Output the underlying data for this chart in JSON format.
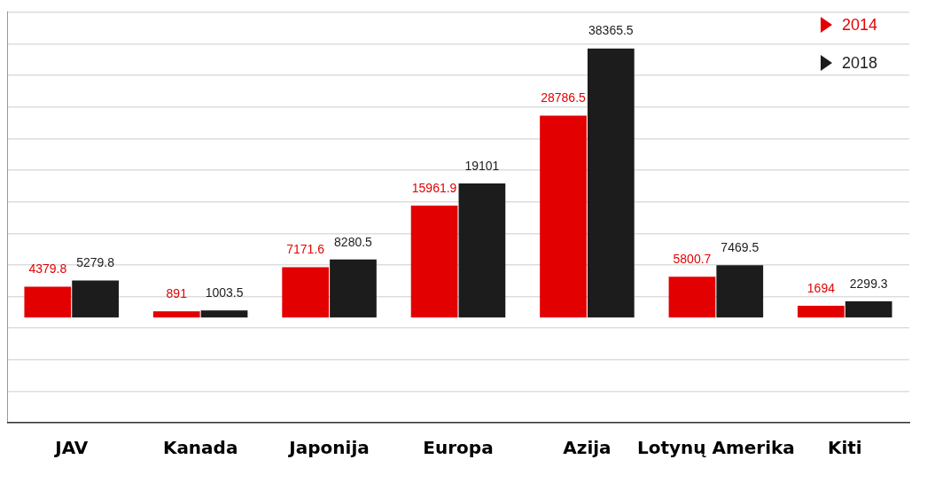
{
  "chart_data": {
    "type": "bar",
    "categories": [
      "JAV",
      "Kanada",
      "Japonija",
      "Europa",
      "Azija",
      "Lotynų Amerika",
      "Kiti"
    ],
    "series": [
      {
        "name": "2014",
        "color": "#e30000",
        "values": [
          4379.8,
          891,
          7171.6,
          15961.9,
          28786.5,
          5800.7,
          1694
        ]
      },
      {
        "name": "2018",
        "color": "#1c1c1c",
        "values": [
          5279.8,
          1003.5,
          8280.5,
          19101,
          38365.5,
          7469.5,
          2299.3
        ]
      }
    ],
    "ylim": [
      -15000,
      43500
    ],
    "yticks": [
      {
        "value": -15000,
        "label": null
      },
      {
        "value": -10500,
        "label": null
      },
      {
        "value": -6000,
        "label": null
      },
      {
        "value": -1500,
        "label": null
      },
      {
        "value": 3000,
        "label": null
      },
      {
        "value": 7500,
        "label": null
      },
      {
        "value": 12000,
        "label": null
      },
      {
        "value": 16500,
        "label": null
      },
      {
        "value": 21000,
        "label": null
      },
      {
        "value": 25500,
        "label": null
      },
      {
        "value": 30000,
        "label": null
      },
      {
        "value": 34500,
        "label": null
      },
      {
        "value": 39000,
        "label": null
      },
      {
        "value": 43500,
        "label": null
      }
    ],
    "grid": "y",
    "legend": "top right",
    "data_labels": true,
    "tick_labels": "x"
  }
}
